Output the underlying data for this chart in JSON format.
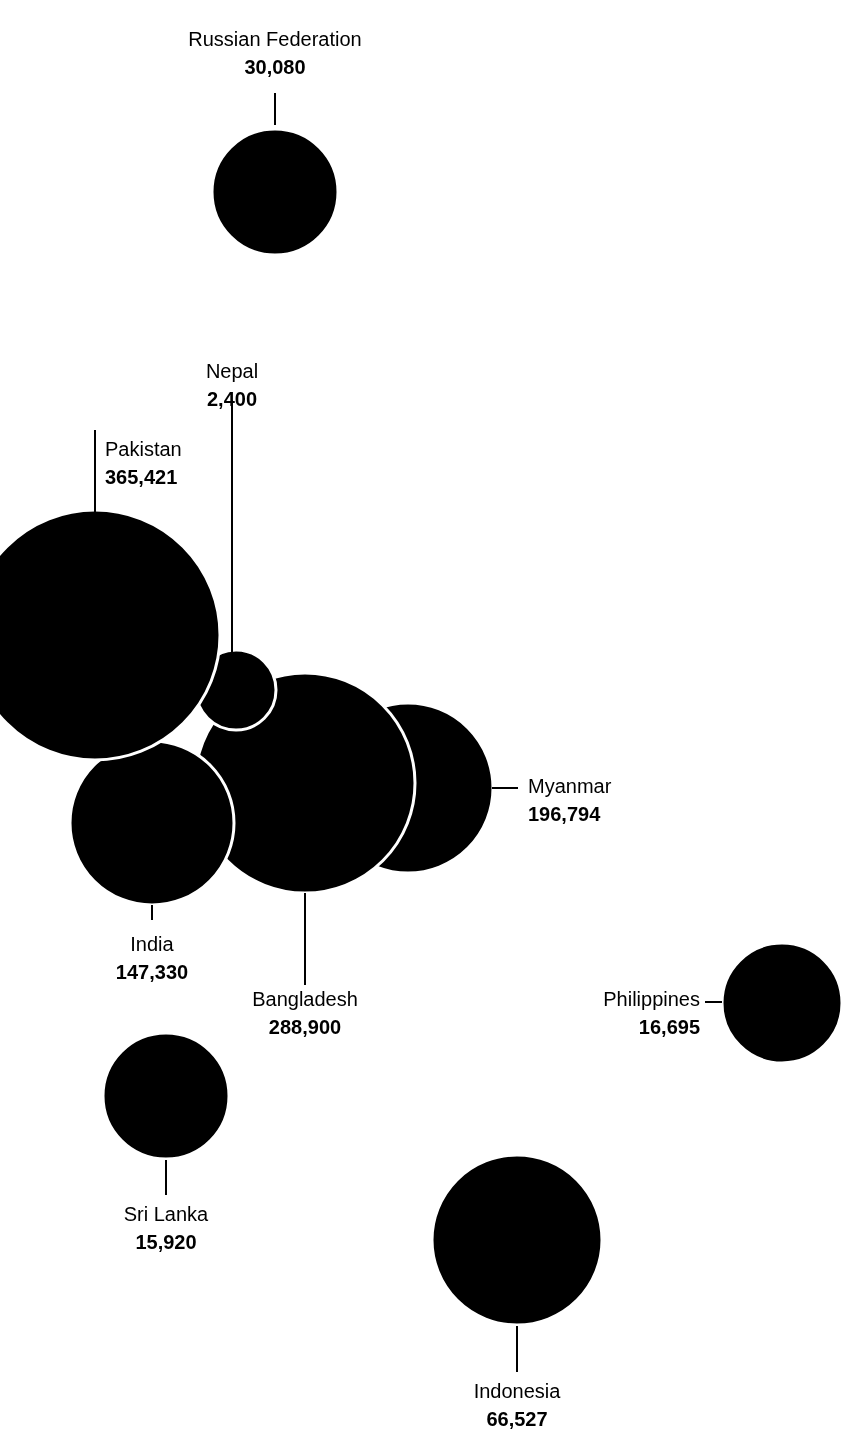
{
  "chart_data": {
    "type": "other",
    "categories": [
      "Russian Federation",
      "Nepal",
      "Pakistan",
      "Myanmar",
      "Bangladesh",
      "India",
      "Philippines",
      "Sri Lanka",
      "Indonesia"
    ],
    "values": [
      30080,
      2400,
      365421,
      196794,
      288900,
      147330,
      16695,
      15920,
      66527
    ],
    "value_labels": [
      "30,080",
      "2,400",
      "365,421",
      "196,794",
      "288,900",
      "147,330",
      "16,695",
      "15,920",
      "66,527"
    ],
    "color": "#000000"
  }
}
